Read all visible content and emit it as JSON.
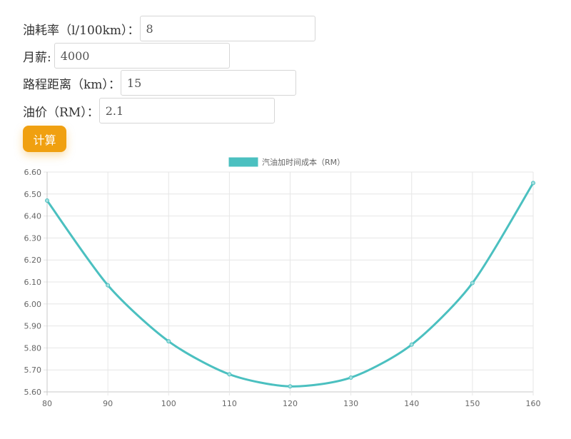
{
  "form": {
    "fuel_rate": {
      "label": "油耗率（l/100km）：",
      "value": "8"
    },
    "salary": {
      "label": "月薪:",
      "value": "4000"
    },
    "distance": {
      "label": "路程距离（km）：",
      "value": "15"
    },
    "fuel_price": {
      "label": "油价（RM）：",
      "value": "2.1"
    }
  },
  "calculate_button": {
    "label": "计算",
    "color": "#f0a010"
  },
  "chart_data": {
    "type": "line",
    "x": [
      80,
      90,
      100,
      110,
      120,
      130,
      140,
      150,
      160
    ],
    "series": [
      {
        "name": "汽油加时间成本（RM）",
        "values": [
          6.47,
          6.085,
          5.83,
          5.68,
          5.625,
          5.665,
          5.815,
          6.095,
          6.55
        ],
        "color": "#4bc0c0"
      }
    ],
    "ylim": [
      5.6,
      6.6
    ],
    "yticks": [
      "5.60",
      "5.70",
      "5.80",
      "5.90",
      "6.00",
      "6.10",
      "6.20",
      "6.30",
      "6.40",
      "6.50",
      "6.60"
    ],
    "xticks": [
      "80",
      "90",
      "100",
      "110",
      "120",
      "130",
      "140",
      "150",
      "160"
    ],
    "grid": true,
    "legend": "top-center"
  }
}
